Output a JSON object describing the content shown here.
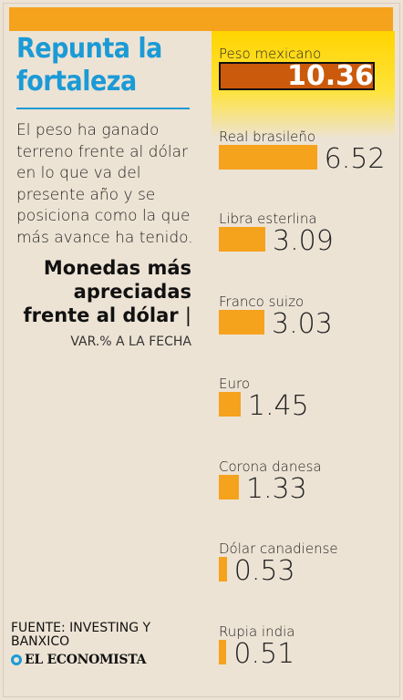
{
  "headline": "Repunta la fortaleza",
  "intro": "El peso ha ganado terreno frente al dólar en lo que va del presente año y se posiciona como la que más avance ha tenido.",
  "source": "FUENTE: INVESTING Y BANXICO",
  "brand": "EL ECONOMISTA",
  "colors": {
    "background": "#ede3d4",
    "bar": "#f5a21d",
    "highlight_bar": "#cc5a0c",
    "headline": "#1b9ad6",
    "glow": "#ffd400"
  },
  "chart_data": {
    "type": "bar",
    "orientation": "horizontal",
    "title": "Monedas más apreciadas frente al dólar",
    "subtitle": "VAR.% A LA FECHA",
    "categories": [
      "Peso mexicano",
      "Real brasileño",
      "Libra esterlina",
      "Franco suizo",
      "Euro",
      "Corona danesa",
      "Dólar canadiense",
      "Rupia india"
    ],
    "values": [
      10.36,
      6.52,
      3.09,
      3.03,
      1.45,
      1.33,
      0.53,
      0.51
    ],
    "value_labels": [
      "10.36",
      "6.52",
      "3.09",
      "3.03",
      "1.45",
      "1.33",
      "0.53",
      "0.51"
    ],
    "highlight_index": 0,
    "grid": false
  }
}
